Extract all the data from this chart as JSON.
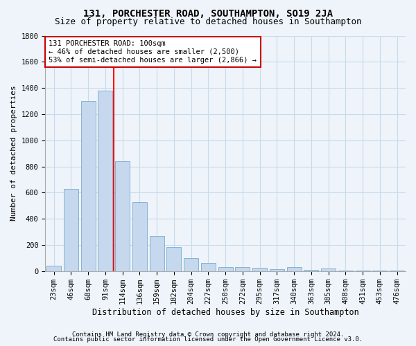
{
  "title1": "131, PORCHESTER ROAD, SOUTHAMPTON, SO19 2JA",
  "title2": "Size of property relative to detached houses in Southampton",
  "xlabel": "Distribution of detached houses by size in Southampton",
  "ylabel": "Number of detached properties",
  "categories": [
    "23sqm",
    "46sqm",
    "68sqm",
    "91sqm",
    "114sqm",
    "136sqm",
    "159sqm",
    "182sqm",
    "204sqm",
    "227sqm",
    "250sqm",
    "272sqm",
    "295sqm",
    "317sqm",
    "340sqm",
    "363sqm",
    "385sqm",
    "408sqm",
    "431sqm",
    "453sqm",
    "476sqm"
  ],
  "values": [
    40,
    630,
    1300,
    1380,
    840,
    530,
    270,
    185,
    100,
    62,
    30,
    30,
    25,
    15,
    30,
    8,
    20,
    5,
    3,
    2,
    5
  ],
  "bar_color": "#c5d8ee",
  "bar_edge_color": "#7aaacc",
  "red_line_x": 3.5,
  "annotation_line1": "131 PORCHESTER ROAD: 100sqm",
  "annotation_line2": "← 46% of detached houses are smaller (2,500)",
  "annotation_line3": "53% of semi-detached houses are larger (2,866) →",
  "annotation_box_color": "#ffffff",
  "annotation_box_edge": "#cc0000",
  "ylim": [
    0,
    1800
  ],
  "yticks": [
    0,
    200,
    400,
    600,
    800,
    1000,
    1200,
    1400,
    1600,
    1800
  ],
  "footer1": "Contains HM Land Registry data © Crown copyright and database right 2024.",
  "footer2": "Contains public sector information licensed under the Open Government Licence v3.0.",
  "bg_color": "#eef4fa",
  "plot_bg_color": "#eef4fa",
  "grid_color": "#c8daea",
  "title1_fontsize": 10,
  "title2_fontsize": 9,
  "xlabel_fontsize": 8.5,
  "ylabel_fontsize": 8,
  "tick_fontsize": 7.5,
  "annotation_fontsize": 7.5,
  "footer_fontsize": 6.5
}
